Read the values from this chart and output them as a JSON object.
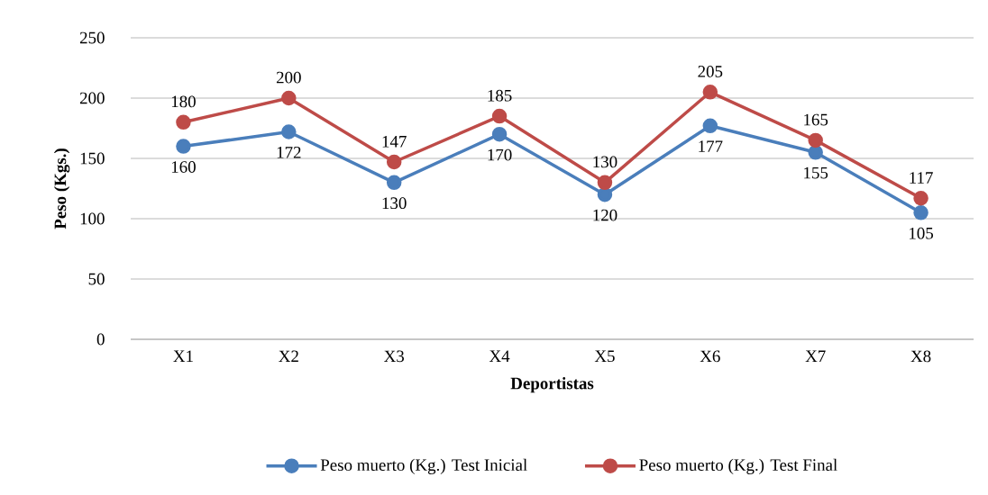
{
  "chart_data": {
    "type": "line",
    "xlabel": "Deportistas",
    "ylabel": "Peso (Kgs.)",
    "categories": [
      "X1",
      "X2",
      "X3",
      "X4",
      "X5",
      "X6",
      "X7",
      "X8"
    ],
    "series": [
      {
        "name": "Peso muerto (Kg.) Test Inicial",
        "color": "#4a7ebb",
        "values": [
          160,
          172,
          130,
          170,
          120,
          177,
          155,
          105
        ]
      },
      {
        "name": "Peso muerto (Kg.) Test Final",
        "color": "#be4b48",
        "values": [
          180,
          200,
          147,
          185,
          130,
          205,
          165,
          117
        ]
      }
    ],
    "ylim": [
      0,
      250
    ],
    "yticks": [
      0,
      50,
      100,
      150,
      200,
      250
    ],
    "grid": "y",
    "legend": "bottom",
    "marker": "circle",
    "line_style": "solid",
    "data_labels": true
  }
}
